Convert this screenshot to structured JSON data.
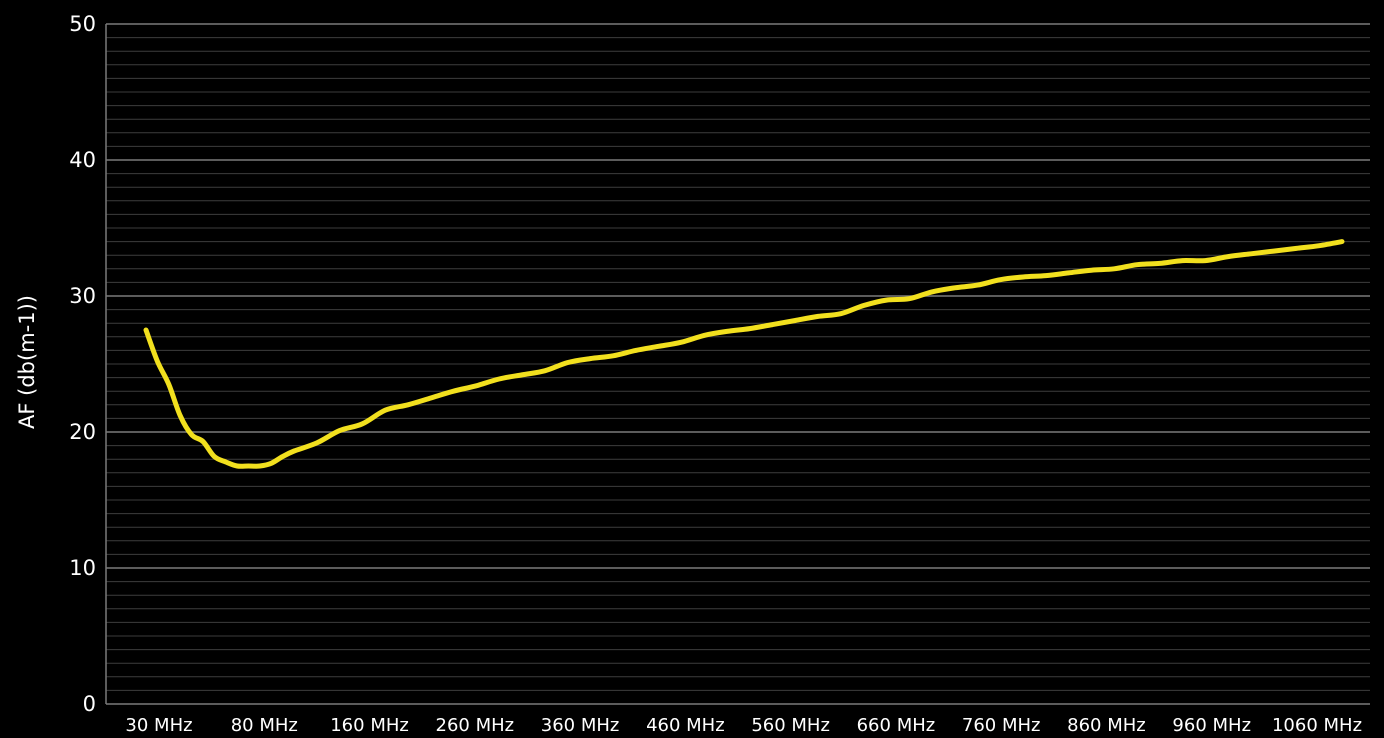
{
  "colors": {
    "background": "#000000",
    "major_grid": "#7a7a7a",
    "minor_grid": "#3d3d3d",
    "series_line": "#f2e01e",
    "text": "#ffffff"
  },
  "chart_data": {
    "type": "line",
    "title": "",
    "xlabel": "",
    "ylabel": "AF (db(m-1))",
    "ylim": [
      0,
      50
    ],
    "y_ticks": [
      0,
      10,
      20,
      30,
      40,
      50
    ],
    "y_minor_step": 1,
    "grid": true,
    "legend": "none",
    "x_tick_labels": [
      "30 MHz",
      "80 MHz",
      "160 MHz",
      "260 MHz",
      "360 MHz",
      "460 MHz",
      "560 MHz",
      "660 MHz",
      "760 MHz",
      "860 MHz",
      "960 MHz",
      "1060 MHz"
    ],
    "x_range_mhz": [
      30,
      1085
    ],
    "series": [
      {
        "x": [
          30,
          40,
          50,
          60,
          70,
          80,
          90,
          100,
          110,
          120,
          130,
          140,
          150,
          160,
          180,
          200,
          220,
          240,
          260,
          280,
          300,
          320,
          340,
          360,
          380,
          400,
          420,
          440,
          460,
          480,
          500,
          520,
          540,
          560,
          580,
          600,
          620,
          640,
          660,
          680,
          700,
          720,
          740,
          760,
          780,
          800,
          820,
          840,
          860,
          880,
          900,
          920,
          940,
          960,
          980,
          1000,
          1020,
          1040,
          1060,
          1080
        ],
        "values": [
          27.5,
          25.2,
          23.5,
          21.2,
          19.8,
          19.3,
          18.2,
          17.8,
          17.5,
          17.5,
          17.5,
          17.7,
          18.2,
          18.6,
          19.2,
          20.1,
          20.6,
          21.6,
          22.0,
          22.5,
          23.0,
          23.4,
          23.9,
          24.2,
          24.5,
          25.1,
          25.4,
          25.6,
          26.0,
          26.3,
          26.6,
          27.1,
          27.4,
          27.6,
          27.9,
          28.2,
          28.5,
          28.7,
          29.3,
          29.7,
          29.8,
          30.3,
          30.6,
          30.8,
          31.2,
          31.4,
          31.5,
          31.7,
          31.9,
          32.0,
          32.3,
          32.4,
          32.6,
          32.6,
          32.9,
          33.1,
          33.3,
          33.5,
          33.7,
          34.0
        ]
      }
    ]
  }
}
